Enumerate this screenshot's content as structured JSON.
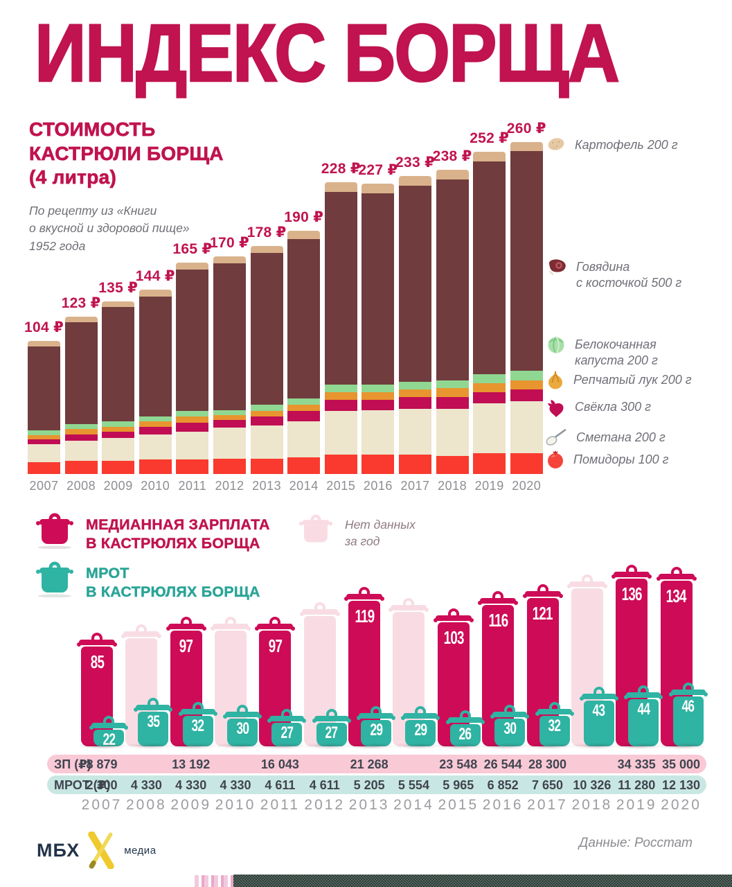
{
  "title": "ИНДЕКС БОРЩА",
  "colors": {
    "crimson": "#C0134F",
    "pot_crimson": "#CE0B56",
    "teal": "#2FB3A3",
    "teal_text": "#2AA498",
    "ghost_pink": "#F9DCE3",
    "beef": "#703C3D",
    "potato": "#D9B28B",
    "cabbage": "#90D792",
    "onion": "#E8952F",
    "beet": "#C00D53",
    "smetana": "#EDE5CC",
    "tomato": "#FA3A2E",
    "zp_bg": "#F9C9D6",
    "mrot_bg": "#C9E7E2",
    "gray_text": "#6F6F78",
    "year": "#9C9CA1",
    "table_text": "#40454F",
    "navy": "#22334A",
    "yellow": "#EFC92D"
  },
  "cost_section": {
    "heading": "СТОИМОСТЬ\nКАСТРЮЛИ БОРЩА\n(4 литра)",
    "note": "По рецепту из «Книги\nо вкусной и здоровой пище»\n1952 года",
    "legend": [
      {
        "icon": "potato-icon",
        "label": "Картофель 200 г"
      },
      {
        "icon": "beef-icon",
        "label": "Говядина\nс косточкой 500 г"
      },
      {
        "icon": "cabbage-icon",
        "label": "Белокочанная\nкапуста 200 г"
      },
      {
        "icon": "onion-icon",
        "label": "Репчатый лук 200 г"
      },
      {
        "icon": "beet-icon",
        "label": "Свёкла 300 г"
      },
      {
        "icon": "smetana-icon",
        "label": "Сметана 200 г"
      },
      {
        "icon": "tomato-icon",
        "label": "Помидоры 100 г"
      }
    ]
  },
  "salary_section": {
    "legend_salary": "МЕДИАННАЯ ЗАРПЛАТА\nВ КАСТРЮЛЯХ БОРЩА",
    "legend_mrot": "МРОТ\nВ КАСТРЮЛЯХ БОРЩА",
    "legend_no_data": "Нет данных\nза год"
  },
  "footer": {
    "brand": "МБХ",
    "brand_sub": "медиа",
    "source": "Данные: Росстат"
  },
  "chart_data": [
    {
      "type": "bar",
      "stacked": true,
      "title": "Стоимость кастрюли борща (4 литра)",
      "unit": "₽",
      "categories": [
        "2007",
        "2008",
        "2009",
        "2010",
        "2011",
        "2012",
        "2013",
        "2014",
        "2015",
        "2016",
        "2017",
        "2018",
        "2019",
        "2020"
      ],
      "totals": [
        104,
        123,
        135,
        144,
        165,
        170,
        178,
        190,
        228,
        227,
        233,
        238,
        252,
        260
      ],
      "ylim": [
        0,
        260
      ],
      "grid": false,
      "legend_position": "right",
      "segment_values_estimated": true,
      "series": [
        {
          "name": "Помидоры 100 г",
          "color": "#FA3A2E",
          "values": [
            9,
            10,
            10,
            11,
            11,
            12,
            12,
            13,
            15,
            15,
            15,
            14,
            16,
            16
          ]
        },
        {
          "name": "Сметана 200 г",
          "color": "#EDE5CC",
          "values": [
            14,
            16,
            18,
            20,
            22,
            24,
            26,
            28,
            34,
            35,
            36,
            37,
            39,
            41
          ]
        },
        {
          "name": "Свёкла 300 г",
          "color": "#C00D53",
          "values": [
            4,
            5,
            5,
            6,
            7,
            6,
            7,
            8,
            9,
            8,
            9,
            9,
            9,
            9
          ]
        },
        {
          "name": "Репчатый лук 200 г",
          "color": "#E8952F",
          "values": [
            3,
            4,
            4,
            4,
            5,
            4,
            4,
            5,
            6,
            6,
            6,
            7,
            7,
            7
          ]
        },
        {
          "name": "Белокочанная капуста 200 г",
          "color": "#90D792",
          "values": [
            4,
            4,
            4,
            4,
            4,
            4,
            5,
            5,
            6,
            6,
            6,
            6,
            7,
            8
          ]
        },
        {
          "name": "Говядина с косточкой 500 г",
          "color": "#703C3D",
          "values": [
            66,
            80,
            90,
            94,
            111,
            115,
            119,
            125,
            151,
            150,
            154,
            158,
            167,
            172
          ]
        },
        {
          "name": "Картофель 200 г",
          "color": "#D9B28B",
          "values": [
            4,
            4,
            4,
            5,
            5,
            5,
            5,
            6,
            7,
            7,
            7,
            7,
            7,
            7
          ]
        }
      ]
    },
    {
      "type": "bar",
      "title": "Медианная зарплата и МРОТ в кастрюлях борща",
      "categories": [
        "2007",
        "2008",
        "2009",
        "2010",
        "2011",
        "2012",
        "2013",
        "2014",
        "2015",
        "2016",
        "2017",
        "2018",
        "2019",
        "2020"
      ],
      "no_data_years": [
        "2008",
        "2010",
        "2012",
        "2014",
        "2018"
      ],
      "no_data_color": "#F9DCE3",
      "series": [
        {
          "name": "Медианная зарплата в кастрюлях борща",
          "color": "#CE0B56",
          "values": [
            85,
            null,
            97,
            null,
            97,
            null,
            119,
            null,
            103,
            116,
            121,
            null,
            136,
            134
          ]
        },
        {
          "name": "МРОТ в кастрюлях борща",
          "color": "#2FB3A3",
          "values": [
            22,
            35,
            32,
            30,
            27,
            27,
            29,
            29,
            26,
            30,
            32,
            43,
            44,
            46
          ]
        }
      ]
    },
    {
      "type": "table",
      "columns": [
        "2007",
        "2008",
        "2009",
        "2010",
        "2011",
        "2012",
        "2013",
        "2014",
        "2015",
        "2016",
        "2017",
        "2018",
        "2019",
        "2020"
      ],
      "rows": [
        {
          "label": "ЗП (₽)",
          "values": [
            "8 879",
            "",
            "13 192",
            "",
            "16 043",
            "",
            "21 268",
            "",
            "23 548",
            "26 544",
            "28 300",
            "",
            "34 335",
            "35 000"
          ]
        },
        {
          "label": "МРОТ (₽)",
          "values": [
            "2 300",
            "4 330",
            "4 330",
            "4 330",
            "4 611",
            "4 611",
            "5 205",
            "5 554",
            "5 965",
            "6 852",
            "7 650",
            "10 326",
            "11 280",
            "12 130"
          ]
        }
      ]
    }
  ]
}
